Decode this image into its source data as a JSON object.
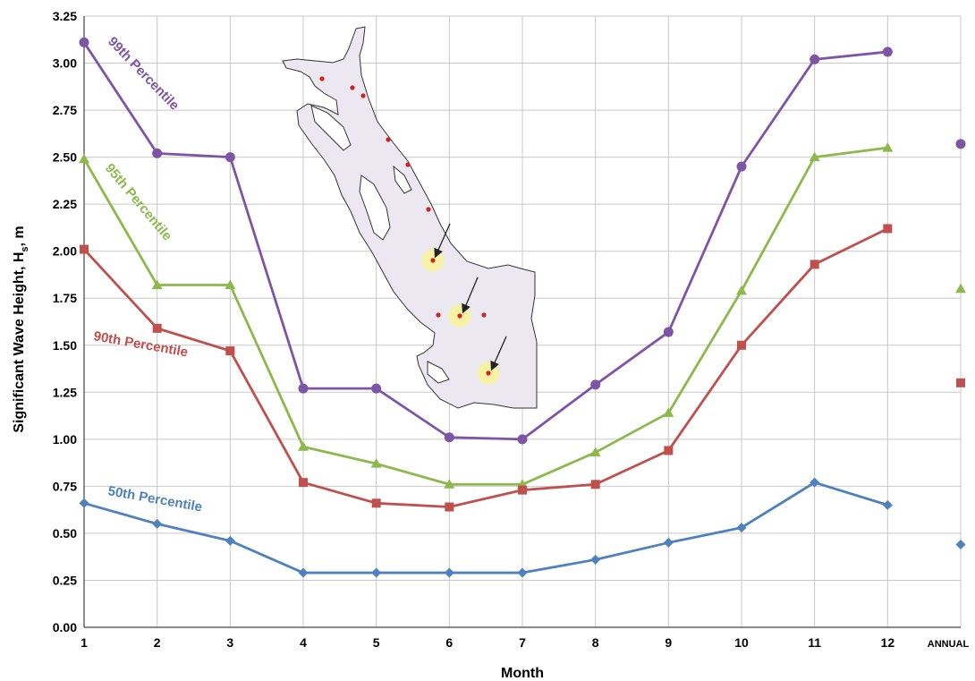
{
  "chart_data": {
    "type": "line",
    "title": "",
    "xlabel": "Month",
    "ylabel": "Significant Wave Height, Hs, m",
    "ylabel_main": "Significant Wave Height, H",
    "ylabel_sub": "s",
    "ylabel_unit": ", m",
    "x": [
      1,
      2,
      3,
      4,
      5,
      6,
      7,
      8,
      9,
      10,
      11,
      12
    ],
    "x_tick_labels": [
      "1",
      "2",
      "3",
      "4",
      "5",
      "6",
      "7",
      "8",
      "9",
      "10",
      "11",
      "12",
      "ANNUAL"
    ],
    "annual_label": "ANNUAL",
    "ylim": [
      0,
      3.25
    ],
    "y_ticks": [
      "0.00",
      "0.25",
      "0.50",
      "0.75",
      "1.00",
      "1.25",
      "1.50",
      "1.75",
      "2.00",
      "2.25",
      "2.50",
      "2.75",
      "3.00",
      "3.25"
    ],
    "grid": true,
    "legend": "inline labels on lines",
    "series": [
      {
        "name": "99th Percentile",
        "color": "#7e54a6",
        "marker": "circle",
        "values": [
          3.11,
          2.52,
          2.5,
          1.27,
          1.27,
          1.01,
          1.0,
          1.29,
          1.57,
          2.45,
          3.02,
          3.06
        ],
        "annual": 2.57
      },
      {
        "name": "95th Percentile",
        "color": "#8db84b",
        "marker": "triangle",
        "values": [
          2.49,
          1.82,
          1.82,
          0.96,
          0.87,
          0.76,
          0.76,
          0.93,
          1.14,
          1.79,
          2.5,
          2.55
        ],
        "annual": 1.8
      },
      {
        "name": "90th Percentile",
        "color": "#c0504d",
        "marker": "square",
        "values": [
          2.01,
          1.59,
          1.47,
          0.77,
          0.66,
          0.64,
          0.73,
          0.76,
          0.94,
          1.5,
          1.93,
          2.12
        ],
        "annual": 1.3
      },
      {
        "name": "50th Percentile",
        "color": "#4f81bd",
        "marker": "diamond",
        "values": [
          0.66,
          0.55,
          0.46,
          0.29,
          0.29,
          0.29,
          0.29,
          0.36,
          0.45,
          0.53,
          0.77,
          0.65
        ],
        "annual": 0.44
      }
    ],
    "inset_map": {
      "icon": "lake-map-icon",
      "fill_color": "#ebe8f2",
      "outline_color": "#333333",
      "station_color": "#d62020",
      "highlight_color": "#f7f39a"
    }
  }
}
